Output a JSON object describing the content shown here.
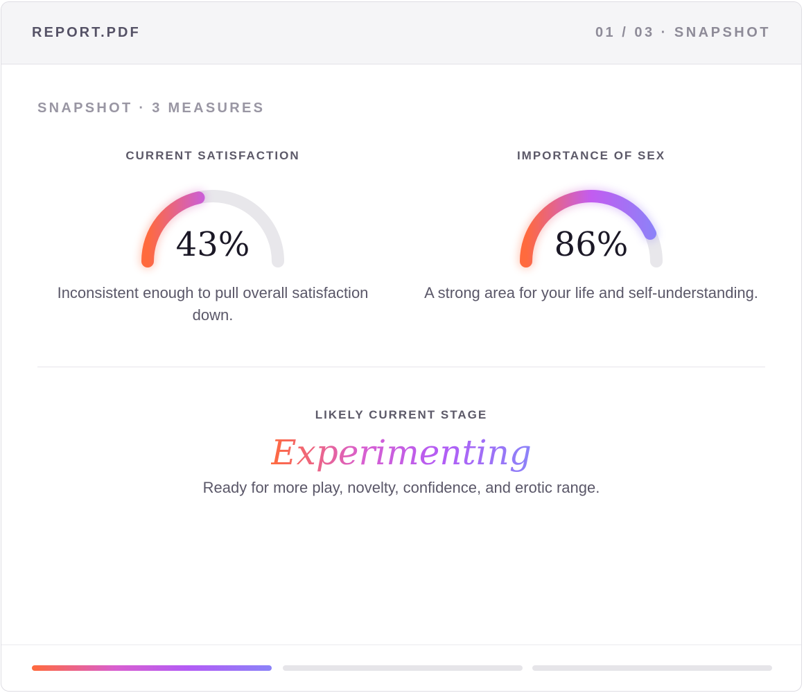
{
  "header": {
    "file_name": "REPORT.PDF",
    "page_indicator": "01 / 03 · SNAPSHOT"
  },
  "section_label": "SNAPSHOT · 3 MEASURES",
  "measures": [
    {
      "title": "CURRENT SATISFACTION",
      "value": 43,
      "value_label": "43%",
      "description": "Inconsistent enough to pull overall satisfaction down."
    },
    {
      "title": "IMPORTANCE OF SEX",
      "value": 86,
      "value_label": "86%",
      "description": "A strong area for your life and self-understanding."
    }
  ],
  "stage": {
    "label": "LIKELY CURRENT STAGE",
    "name": "Experimenting",
    "description": "Ready for more play, novelty, confidence, and erotic range."
  },
  "progress": {
    "current": 1,
    "total": 3
  },
  "colors": {
    "gradient_start": "#ff6a3d",
    "gradient_mid": "#c25cf0",
    "gradient_end": "#8b83f8",
    "track": "#e8e7eb",
    "header_bg": "#f5f5f7"
  }
}
